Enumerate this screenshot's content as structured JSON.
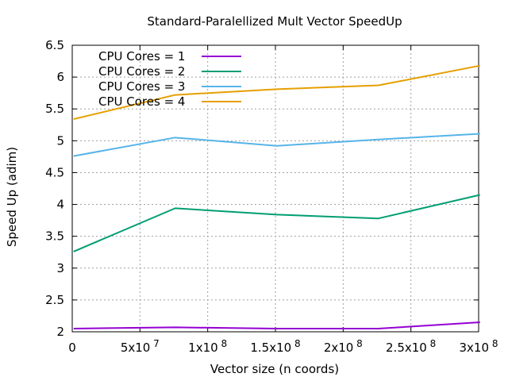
{
  "chart_data": {
    "type": "line",
    "title": "Standard-Paralellized Mult Vector SpeedUp",
    "xlabel": "Vector size (n coords)",
    "ylabel": "Speed Up (adim)",
    "xlim": [
      0,
      300000000
    ],
    "ylim": [
      2,
      6.5
    ],
    "grid": true,
    "legend_position": "top-left",
    "x_ticks": [
      {
        "value": 0,
        "mantissa": "0",
        "exp": ""
      },
      {
        "value": 50000000,
        "mantissa": "5x10",
        "exp": "7"
      },
      {
        "value": 100000000,
        "mantissa": "1x10",
        "exp": "8"
      },
      {
        "value": 150000000,
        "mantissa": "1.5x10",
        "exp": "8"
      },
      {
        "value": 200000000,
        "mantissa": "2x10",
        "exp": "8"
      },
      {
        "value": 250000000,
        "mantissa": "2.5x10",
        "exp": "8"
      },
      {
        "value": 300000000,
        "mantissa": "3x10",
        "exp": "8"
      }
    ],
    "y_ticks": [
      {
        "value": 2,
        "label": "2"
      },
      {
        "value": 2.5,
        "label": "2.5"
      },
      {
        "value": 3,
        "label": "3"
      },
      {
        "value": 3.5,
        "label": "3.5"
      },
      {
        "value": 4,
        "label": "4"
      },
      {
        "value": 4.5,
        "label": "4.5"
      },
      {
        "value": 5,
        "label": "5"
      },
      {
        "value": 5.5,
        "label": "5.5"
      },
      {
        "value": 6,
        "label": "6"
      },
      {
        "value": 6.5,
        "label": "6.5"
      }
    ],
    "x": [
      1000000,
      76000000,
      151000000,
      226000000,
      301000000
    ],
    "series": [
      {
        "name": "CPU Cores = 1",
        "color": "#9400d3",
        "values": [
          2.05,
          2.07,
          2.05,
          2.05,
          2.15
        ]
      },
      {
        "name": "CPU Cores = 2",
        "color": "#009e73",
        "values": [
          3.26,
          3.94,
          3.84,
          3.78,
          4.15
        ]
      },
      {
        "name": "CPU Cores = 3",
        "color": "#56b4e9",
        "values": [
          4.76,
          5.05,
          4.92,
          5.02,
          5.11
        ]
      },
      {
        "name": "CPU Cores = 4",
        "color": "#e69f00",
        "values": [
          5.34,
          5.72,
          5.81,
          5.87,
          6.18
        ]
      }
    ]
  }
}
